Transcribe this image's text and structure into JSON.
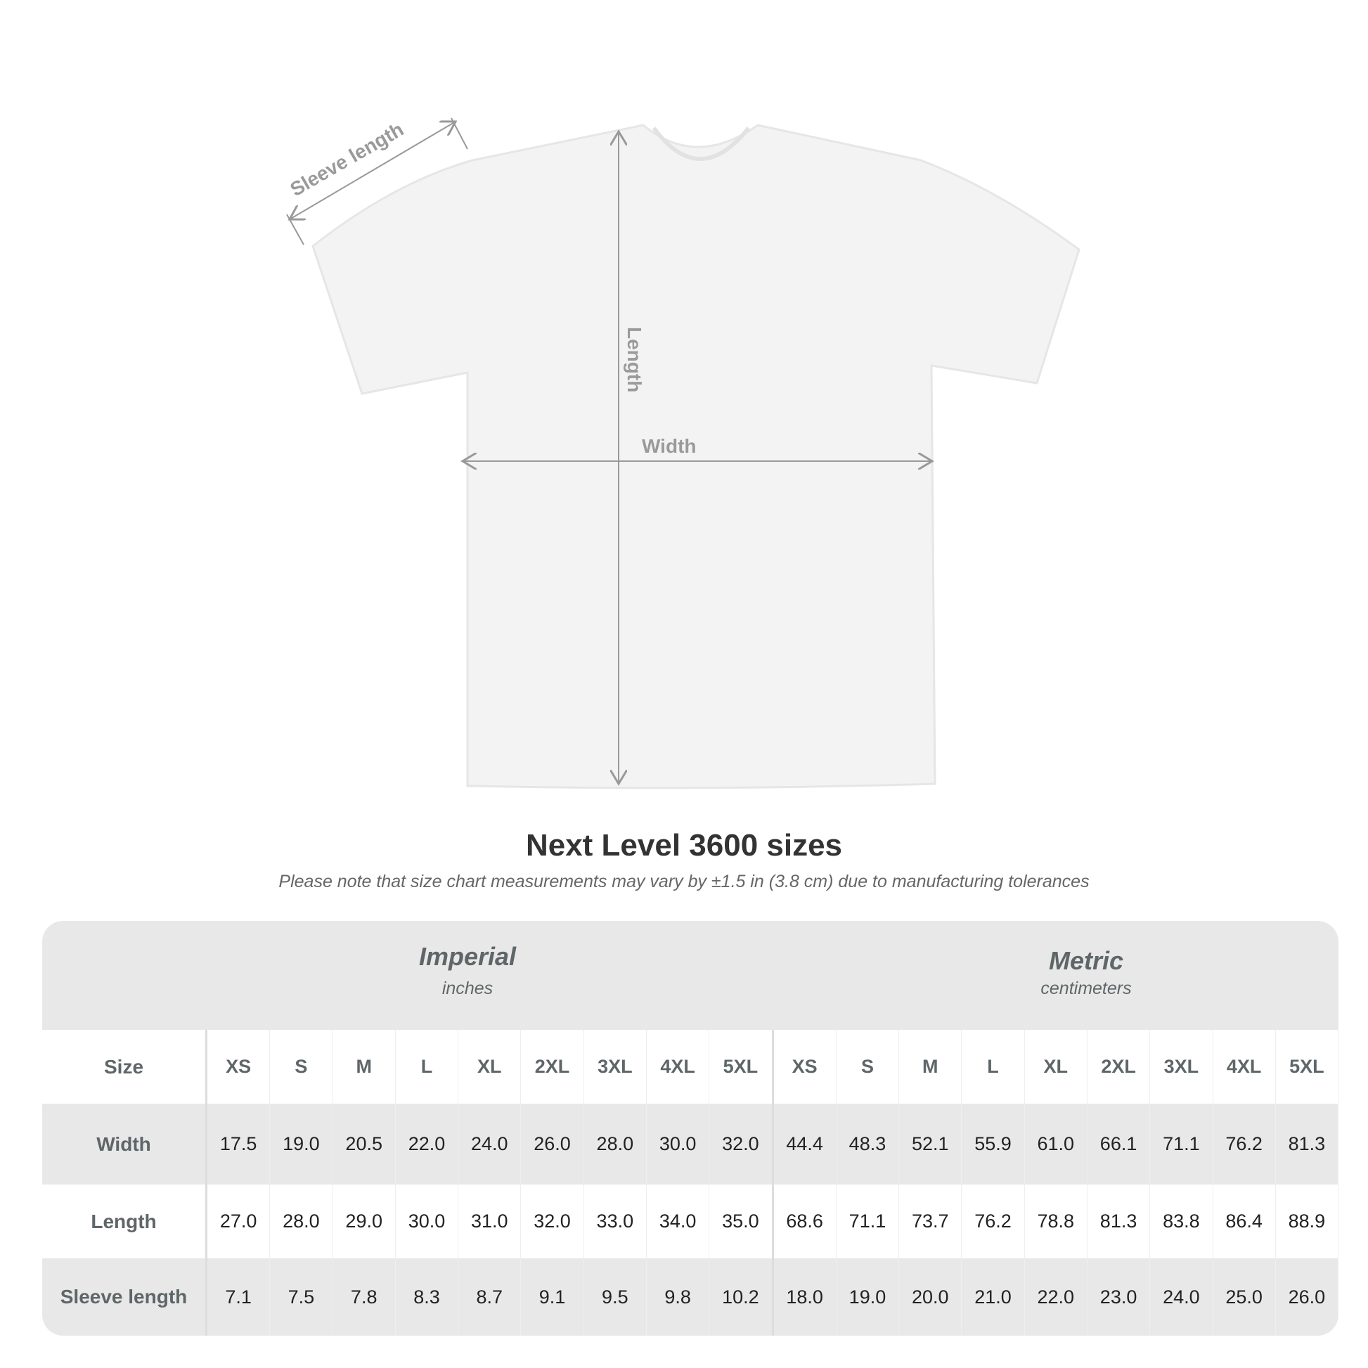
{
  "diagram": {
    "sleeve_label": "Sleeve length",
    "length_label": "Length",
    "width_label": "Width"
  },
  "title": "Next Level 3600 sizes",
  "subtitle": "Please note that size chart measurements may vary by ±1.5 in (3.8 cm) due to manufacturing tolerances",
  "imperial": {
    "name": "Imperial",
    "unit": "inches"
  },
  "metric": {
    "name": "Metric",
    "unit": "centimeters"
  },
  "rows": [
    {
      "label": "Size",
      "values": [
        "XS",
        "S",
        "M",
        "L",
        "XL",
        "2XL",
        "3XL",
        "4XL",
        "5XL",
        "XS",
        "S",
        "M",
        "L",
        "XL",
        "2XL",
        "3XL",
        "4XL",
        "5XL"
      ]
    },
    {
      "label": "Width",
      "values": [
        "17.5",
        "19.0",
        "20.5",
        "22.0",
        "24.0",
        "26.0",
        "28.0",
        "30.0",
        "32.0",
        "44.4",
        "48.3",
        "52.1",
        "55.9",
        "61.0",
        "66.1",
        "71.1",
        "76.2",
        "81.3"
      ]
    },
    {
      "label": "Length",
      "values": [
        "27.0",
        "28.0",
        "29.0",
        "30.0",
        "31.0",
        "32.0",
        "33.0",
        "34.0",
        "35.0",
        "68.6",
        "71.1",
        "73.7",
        "76.2",
        "78.8",
        "81.3",
        "83.8",
        "86.4",
        "88.9"
      ]
    },
    {
      "label": "Sleeve length",
      "values": [
        "7.1",
        "7.5",
        "7.8",
        "8.3",
        "8.7",
        "9.1",
        "9.5",
        "9.8",
        "10.2",
        "18.0",
        "19.0",
        "20.0",
        "21.0",
        "22.0",
        "23.0",
        "24.0",
        "25.0",
        "26.0"
      ]
    }
  ],
  "colors": {
    "header_bg": "#e8e8e8",
    "label": "#5f6668",
    "arrow": "#999999"
  }
}
